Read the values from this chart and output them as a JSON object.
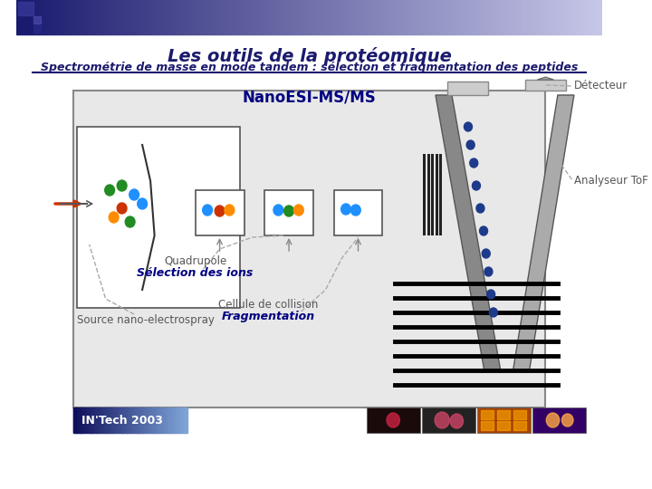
{
  "title": "Les outils de la protéomique",
  "subtitle": "Spectrométrie de masse en mode tandem : sélection et fragmentation des peptides",
  "nano_title": "NanoESI-MS/MS",
  "label_detector": "Détecteur",
  "label_analyser": "Analyseur ToF",
  "label_source": "Source nano-electrospray",
  "label_quadrupole": "Quadrupole",
  "label_selection": "Sélection des ions",
  "label_collision": "Cellule de collision",
  "label_fragmentation": "Fragmentation",
  "label_intech": "IN'Tech 2003",
  "bg_color": "#f0f0f0",
  "header_color_left": "#1a1a6e",
  "header_color_right": "#c8c8e8",
  "title_color": "#1a1a6e",
  "subtitle_color": "#1a1a6e",
  "nano_title_color": "#000080",
  "label_color": "#555555",
  "selection_color": "#000080",
  "fragmentation_color": "#000080"
}
